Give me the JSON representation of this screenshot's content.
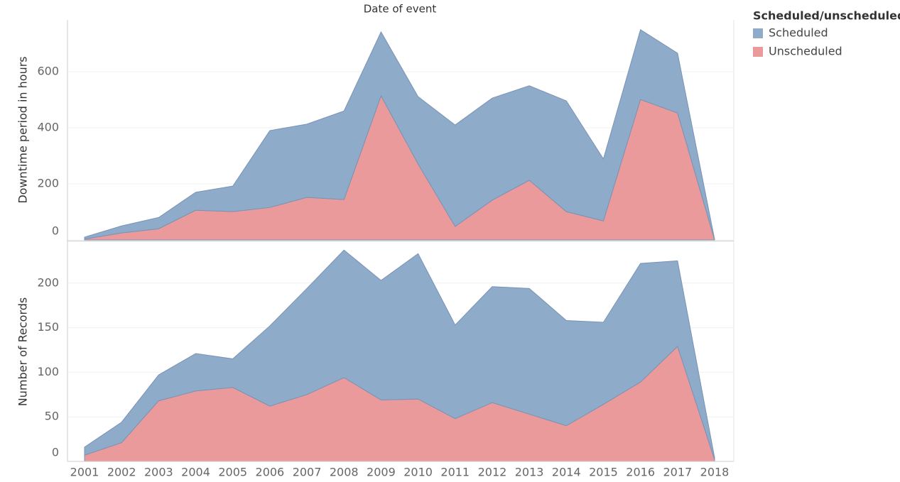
{
  "chart_data": {
    "type": "area",
    "title": "Date of event",
    "legend_title": "Scheduled/unscheduled",
    "categories": [
      "2001",
      "2002",
      "2003",
      "2004",
      "2005",
      "2006",
      "2007",
      "2008",
      "2009",
      "2010",
      "2011",
      "2012",
      "2013",
      "2014",
      "2015",
      "2016",
      "2017",
      "2018"
    ],
    "grid": true,
    "stacked": true,
    "panels": [
      {
        "ylabel": "Downtime period in hours",
        "ylim": [
          0,
          785
        ],
        "yticks": [
          0,
          200,
          400,
          600
        ],
        "series": [
          {
            "name": "Unscheduled",
            "color": "#eb9a9b",
            "values": [
              3,
              25,
              40,
              106,
              101,
              116,
              152,
              144,
              514,
              271,
              48,
              142,
              213,
              101,
              68,
              501,
              453,
              0
            ]
          },
          {
            "name": "Scheduled",
            "color": "#8eabc9",
            "values": [
              7,
              25,
              40,
              64,
              91,
              274,
              261,
              316,
              228,
              240,
              362,
              364,
              337,
              395,
              221,
              249,
              213,
              2
            ]
          }
        ]
      },
      {
        "ylabel": "Number of Records",
        "ylim": [
          0,
          246
        ],
        "yticks": [
          0,
          50,
          100,
          150,
          200
        ],
        "series": [
          {
            "values": [
              7,
              21,
              68,
              79,
              83,
              62,
              75,
              94,
              69,
              70,
              48,
              66,
              53,
              40,
              64,
              89,
              129,
              2
            ]
          },
          {
            "values": [
              9,
              23,
              29,
              42,
              32,
              90,
              119,
              143,
              134,
              163,
              105,
              130,
              141,
              118,
              92,
              133,
              96,
              2
            ]
          }
        ]
      }
    ]
  }
}
